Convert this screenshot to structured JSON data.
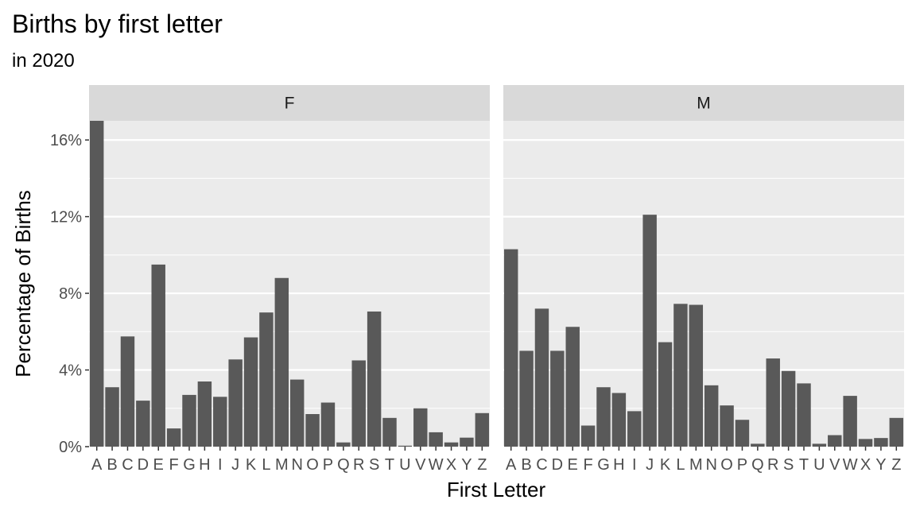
{
  "title": "Births by first letter",
  "subtitle": "in 2020",
  "chart_data": {
    "type": "bar",
    "title": "Births by first letter",
    "subtitle": "in 2020",
    "xlabel": "First Letter",
    "ylabel": "Percentage of Births",
    "ylim": [
      0,
      17
    ],
    "y_ticks": [
      "0%",
      "4%",
      "8%",
      "12%",
      "16%"
    ],
    "y_tick_values": [
      0,
      4,
      8,
      12,
      16
    ],
    "grid": true,
    "bar_color": "#595959",
    "panel_color": "#ebebeb",
    "strip_color": "#d9d9d9",
    "categories": [
      "A",
      "B",
      "C",
      "D",
      "E",
      "F",
      "G",
      "H",
      "I",
      "J",
      "K",
      "L",
      "M",
      "N",
      "O",
      "P",
      "Q",
      "R",
      "S",
      "T",
      "U",
      "V",
      "W",
      "X",
      "Y",
      "Z"
    ],
    "facets": [
      {
        "name": "F",
        "values": [
          17.0,
          3.1,
          5.75,
          2.4,
          9.5,
          0.95,
          2.7,
          3.4,
          2.6,
          4.55,
          5.7,
          7.0,
          8.8,
          3.5,
          1.7,
          2.3,
          0.22,
          4.5,
          7.05,
          1.5,
          0.05,
          2.0,
          0.75,
          0.22,
          0.47,
          1.75
        ]
      },
      {
        "name": "M",
        "values": [
          10.3,
          5.0,
          7.2,
          5.0,
          6.25,
          1.1,
          3.1,
          2.8,
          1.85,
          12.1,
          5.45,
          7.45,
          7.4,
          3.2,
          2.15,
          1.4,
          0.15,
          4.6,
          3.95,
          3.3,
          0.15,
          0.6,
          2.65,
          0.4,
          0.45,
          1.5
        ]
      }
    ]
  }
}
